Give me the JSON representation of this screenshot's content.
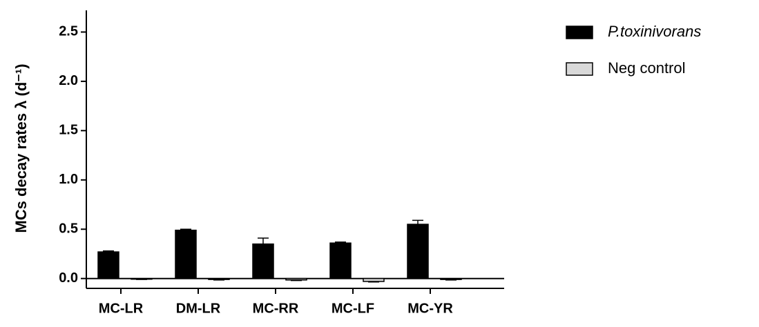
{
  "chart_data": {
    "type": "bar",
    "y_label": "MCs decay rates λ (d⁻¹)",
    "categories": [
      "MC-LR",
      "DM-LR",
      "MC-RR",
      "MC-LF",
      "MC-YR"
    ],
    "series": [
      {
        "name": "P.toxinivorans",
        "color": "#000000",
        "values": [
          0.27,
          0.49,
          0.35,
          0.36,
          0.55
        ],
        "errors": [
          0.01,
          0.01,
          0.06,
          0.01,
          0.04
        ]
      },
      {
        "name": "Neg control",
        "color": "#d9d9d9",
        "values": [
          -0.005,
          -0.01,
          -0.015,
          -0.03,
          -0.01
        ],
        "errors": [
          0.005,
          0.005,
          0.005,
          0.005,
          0.005
        ]
      }
    ],
    "ylim": [
      -0.1,
      2.72
    ],
    "yticks": [
      {
        "value": 0,
        "label": "0.0"
      },
      0.5,
      {
        "value": 1,
        "label": "1.0"
      },
      1.5,
      {
        "value": 2,
        "label": "2.0"
      },
      2.5
    ]
  }
}
